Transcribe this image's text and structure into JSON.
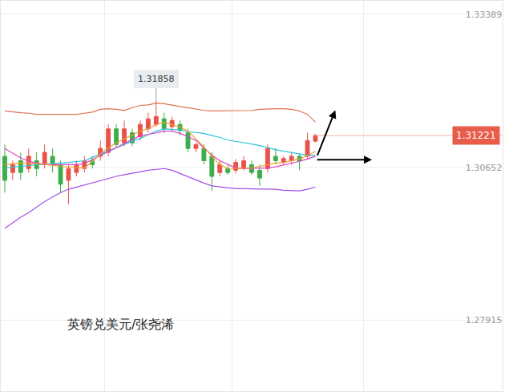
{
  "chart_data": {
    "type": "candlestick",
    "title": "英镑兑美元/张尧浠",
    "x": [
      0,
      1,
      2,
      3,
      4,
      5,
      6,
      7,
      8,
      9,
      10,
      11,
      12,
      13,
      14,
      15,
      16,
      17,
      18,
      19,
      20,
      21,
      22,
      23,
      24,
      25,
      26,
      27,
      28,
      29,
      30,
      31,
      32,
      33,
      34,
      35,
      36,
      37,
      38,
      39
    ],
    "open": [
      1.3085,
      1.3056,
      1.3077,
      1.3063,
      1.3077,
      1.307,
      1.3085,
      1.307,
      1.3042,
      1.3056,
      1.3063,
      1.3077,
      1.3085,
      1.3092,
      1.3134,
      1.3109,
      1.3127,
      1.312,
      1.3134,
      1.3142,
      1.3152,
      1.3138,
      1.3142,
      1.3127,
      1.3099,
      1.3099,
      1.3085,
      1.3056,
      1.3063,
      1.306,
      1.3063,
      1.307,
      1.306,
      1.3063,
      1.3085,
      1.3074,
      1.3077,
      1.3085,
      1.3085,
      1.3112
    ],
    "high": [
      1.3106,
      1.3077,
      1.3092,
      1.3099,
      1.3092,
      1.3106,
      1.3099,
      1.3077,
      1.307,
      1.3077,
      1.3085,
      1.3085,
      1.3113,
      1.3142,
      1.3142,
      1.3149,
      1.3134,
      1.3149,
      1.3163,
      1.31858,
      1.3163,
      1.3156,
      1.3149,
      1.3134,
      1.3109,
      1.3106,
      1.3092,
      1.3077,
      1.307,
      1.308,
      1.3085,
      1.3077,
      1.307,
      1.3106,
      1.3099,
      1.3085,
      1.3092,
      1.3089,
      1.3127,
      1.3125
    ],
    "low": [
      1.302,
      1.3042,
      1.3042,
      1.3056,
      1.3049,
      1.3063,
      1.3056,
      1.302,
      1.2999,
      1.3049,
      1.3056,
      1.3063,
      1.3077,
      1.3085,
      1.3099,
      1.3103,
      1.3103,
      1.3113,
      1.3127,
      1.3138,
      1.3127,
      1.3131,
      1.3123,
      1.3092,
      1.3092,
      1.307,
      1.3023,
      1.3049,
      1.3052,
      1.3054,
      1.306,
      1.3052,
      1.3032,
      1.3056,
      1.307,
      1.307,
      1.307,
      1.306,
      1.3081,
      1.311
    ],
    "close": [
      1.3042,
      1.307,
      1.3056,
      1.3085,
      1.3063,
      1.3092,
      1.307,
      1.3035,
      1.3063,
      1.307,
      1.3077,
      1.307,
      1.3099,
      1.3134,
      1.3106,
      1.3134,
      1.3109,
      1.3142,
      1.3152,
      1.3156,
      1.3134,
      1.3149,
      1.3131,
      1.3099,
      1.3106,
      1.3077,
      1.3049,
      1.307,
      1.3056,
      1.3074,
      1.3077,
      1.3056,
      1.3046,
      1.3099,
      1.3077,
      1.3081,
      1.3085,
      1.3077,
      1.3113,
      1.31221
    ],
    "series": [
      {
        "type": "line",
        "color": "#e0704e",
        "values": [
          1.3166,
          1.3164,
          1.3163,
          1.3162,
          1.316,
          1.316,
          1.316,
          1.316,
          1.316,
          1.316,
          1.3162,
          1.3164,
          1.3169,
          1.317,
          1.3169,
          1.3167,
          1.3172,
          1.3176,
          1.3177,
          1.318,
          1.3179,
          1.3176,
          1.3174,
          1.3172,
          1.3169,
          1.3167,
          1.3166,
          1.3166,
          1.3166,
          1.3166,
          1.3166,
          1.3167,
          1.3169,
          1.317,
          1.317,
          1.317,
          1.3169,
          1.3166,
          1.316,
          1.3146
        ]
      },
      {
        "type": "line",
        "color": "#2ec4d6",
        "values": [
          1.3063,
          1.3066,
          1.3067,
          1.3069,
          1.307,
          1.307,
          1.3072,
          1.3073,
          1.3074,
          1.3076,
          1.3077,
          1.3083,
          1.3089,
          1.3094,
          1.31,
          1.3106,
          1.3112,
          1.3117,
          1.3123,
          1.313,
          1.3134,
          1.3133,
          1.3132,
          1.3129,
          1.3127,
          1.3126,
          1.3122,
          1.3119,
          1.3114,
          1.3112,
          1.311,
          1.3107,
          1.3104,
          1.31,
          1.3097,
          1.3094,
          1.3092,
          1.3089,
          1.3087,
          1.3087
        ]
      },
      {
        "type": "line",
        "color": "#e040c8",
        "values": [
          1.3099,
          1.309,
          1.3082,
          1.3076,
          1.3073,
          1.307,
          1.307,
          1.307,
          1.307,
          1.307,
          1.3072,
          1.3079,
          1.3086,
          1.3093,
          1.31,
          1.3107,
          1.3114,
          1.3122,
          1.3124,
          1.3127,
          1.313,
          1.313,
          1.3126,
          1.312,
          1.3113,
          1.31,
          1.3087,
          1.3077,
          1.307,
          1.3064,
          1.3063,
          1.3063,
          1.3063,
          1.3064,
          1.3066,
          1.3069,
          1.3072,
          1.3076,
          1.308,
          1.3085
        ]
      },
      {
        "type": "line",
        "color": "#f0a030",
        "values": [
          1.307,
          1.3072,
          1.3073,
          1.3073,
          1.3072,
          1.307,
          1.3069,
          1.3067,
          1.3066,
          1.3064,
          1.3064,
          1.3076,
          1.3089,
          1.31,
          1.3109,
          1.3116,
          1.3123,
          1.313,
          1.3134,
          1.3142,
          1.3146,
          1.3142,
          1.3137,
          1.313,
          1.3116,
          1.3102,
          1.3085,
          1.307,
          1.3063,
          1.3063,
          1.3063,
          1.3064,
          1.3067,
          1.307,
          1.3073,
          1.3074,
          1.3077,
          1.308,
          1.3086,
          1.3094
        ]
      },
      {
        "type": "line",
        "color": "#a050e8",
        "values": [
          1.2956,
          1.2966,
          1.2976,
          1.2984,
          1.2994,
          1.3004,
          1.3012,
          1.302,
          1.3026,
          1.303,
          1.3033,
          1.3037,
          1.3042,
          1.3046,
          1.3049,
          1.3052,
          1.3054,
          1.3057,
          1.306,
          1.3062,
          1.3063,
          1.306,
          1.3054,
          1.3049,
          1.3043,
          1.3037,
          1.3032,
          1.303,
          1.3029,
          1.3027,
          1.3027,
          1.3027,
          1.3026,
          1.3026,
          1.3026,
          1.3024,
          1.3023,
          1.3023,
          1.3026,
          1.303
        ]
      }
    ],
    "annotations": [
      {
        "text": "1.31858",
        "y": 1.31858
      },
      {
        "text": "1.31221",
        "y": 1.31221
      }
    ],
    "xlim": [
      -0.5,
      62.5
    ],
    "xticks": [
      12.5,
      28.5,
      45
    ],
    "ylim": [
      1.26646,
      1.33632
    ],
    "yticks": [
      1.33389,
      1.30652,
      1.27915
    ],
    "grid": true,
    "tick_labels": "y"
  }
}
